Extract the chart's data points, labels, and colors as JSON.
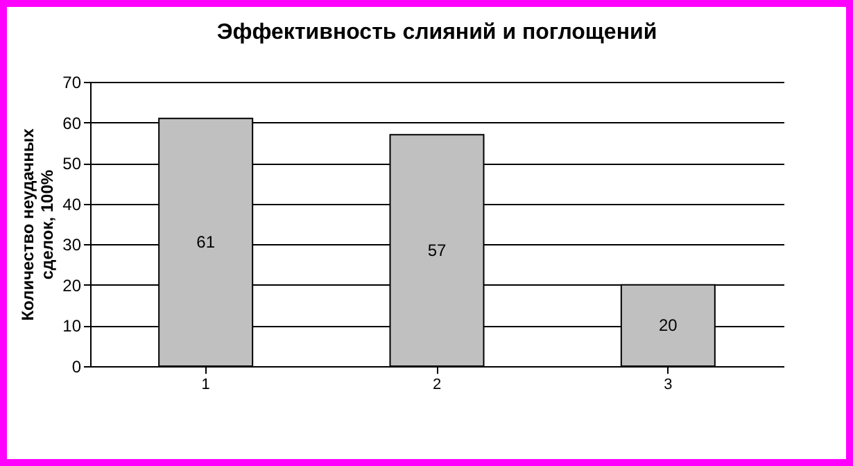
{
  "chart_data": {
    "type": "bar",
    "title": "Эффективность слияний и поглощений",
    "ylabel": "Количество неудачных сделок, 100%",
    "categories": [
      "1",
      "2",
      "3"
    ],
    "values": [
      61,
      57,
      20
    ],
    "color": "#c0c0c0",
    "ylim": [
      0,
      70
    ],
    "yticks": [
      0,
      10,
      20,
      30,
      40,
      50,
      60,
      70
    ],
    "grid": "y",
    "data_labels": true
  }
}
